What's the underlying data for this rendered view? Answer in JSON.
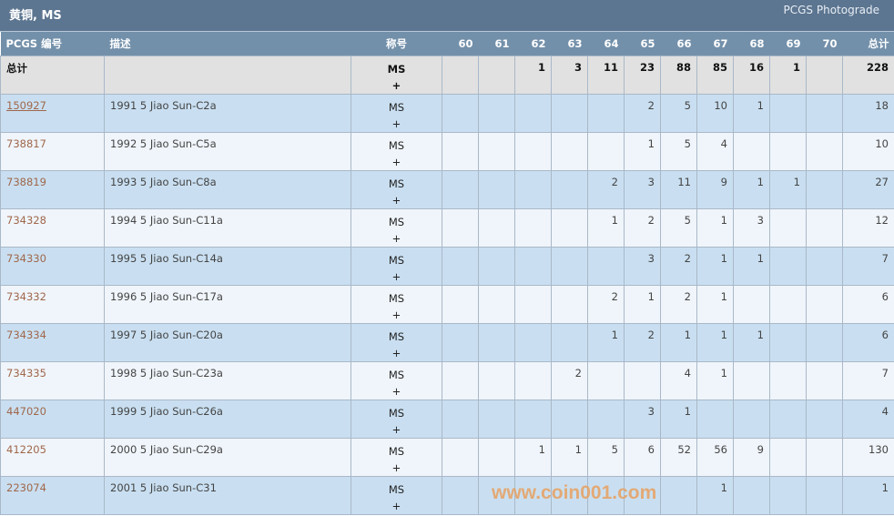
{
  "title": "黄铜, MS",
  "photograde_link": "PCGS Photograde",
  "headers": {
    "pcgs": "PCGS 编号",
    "desc": "描述",
    "designation": "称号",
    "grades": [
      "60",
      "61",
      "62",
      "63",
      "64",
      "65",
      "66",
      "67",
      "68",
      "69",
      "70"
    ],
    "total": "总计"
  },
  "total_row": {
    "label": "总计",
    "designation": "MS",
    "plus": "+",
    "counts": [
      "",
      "",
      "1",
      "3",
      "11",
      "23",
      "88",
      "85",
      "16",
      "1",
      ""
    ],
    "total": "228"
  },
  "rows": [
    {
      "pcgs": "150927",
      "desc": "1991 5 Jiao Sun-C2a",
      "designation": "MS",
      "plus": "+",
      "counts": [
        "",
        "",
        "",
        "",
        "",
        "2",
        "5",
        "10",
        "1",
        "",
        ""
      ],
      "total": "18"
    },
    {
      "pcgs": "738817",
      "desc": "1992 5 Jiao Sun-C5a",
      "designation": "MS",
      "plus": "+",
      "counts": [
        "",
        "",
        "",
        "",
        "",
        "1",
        "5",
        "4",
        "",
        "",
        ""
      ],
      "total": "10"
    },
    {
      "pcgs": "738819",
      "desc": "1993 5 Jiao Sun-C8a",
      "designation": "MS",
      "plus": "+",
      "counts": [
        "",
        "",
        "",
        "",
        "2",
        "3",
        "11",
        "9",
        "1",
        "1",
        ""
      ],
      "total": "27"
    },
    {
      "pcgs": "734328",
      "desc": "1994 5 Jiao Sun-C11a",
      "designation": "MS",
      "plus": "+",
      "counts": [
        "",
        "",
        "",
        "",
        "1",
        "2",
        "5",
        "1",
        "3",
        "",
        ""
      ],
      "total": "12"
    },
    {
      "pcgs": "734330",
      "desc": "1995 5 Jiao Sun-C14a",
      "designation": "MS",
      "plus": "+",
      "counts": [
        "",
        "",
        "",
        "",
        "",
        "3",
        "2",
        "1",
        "1",
        "",
        ""
      ],
      "total": "7"
    },
    {
      "pcgs": "734332",
      "desc": "1996 5 Jiao Sun-C17a",
      "designation": "MS",
      "plus": "+",
      "counts": [
        "",
        "",
        "",
        "",
        "2",
        "1",
        "2",
        "1",
        "",
        "",
        ""
      ],
      "total": "6"
    },
    {
      "pcgs": "734334",
      "desc": "1997 5 Jiao Sun-C20a",
      "designation": "MS",
      "plus": "+",
      "counts": [
        "",
        "",
        "",
        "",
        "1",
        "2",
        "1",
        "1",
        "1",
        "",
        ""
      ],
      "total": "6"
    },
    {
      "pcgs": "734335",
      "desc": "1998 5 Jiao Sun-C23a",
      "designation": "MS",
      "plus": "+",
      "counts": [
        "",
        "",
        "",
        "2",
        "",
        "",
        "4",
        "1",
        "",
        "",
        ""
      ],
      "total": "7"
    },
    {
      "pcgs": "447020",
      "desc": "1999 5 Jiao Sun-C26a",
      "designation": "MS",
      "plus": "+",
      "counts": [
        "",
        "",
        "",
        "",
        "",
        "3",
        "1",
        "",
        "",
        "",
        ""
      ],
      "total": "4"
    },
    {
      "pcgs": "412205",
      "desc": "2000 5 Jiao Sun-C29a",
      "designation": "MS",
      "plus": "+",
      "counts": [
        "",
        "",
        "1",
        "1",
        "5",
        "6",
        "52",
        "56",
        "9",
        "",
        ""
      ],
      "total": "130"
    },
    {
      "pcgs": "223074",
      "desc": "2001 5 Jiao Sun-C31",
      "designation": "MS",
      "plus": "+",
      "counts": [
        "",
        "",
        "",
        "",
        "",
        "",
        "",
        "1",
        "",
        "",
        ""
      ],
      "total": "1"
    }
  ],
  "watermark": "www.coin001.com"
}
